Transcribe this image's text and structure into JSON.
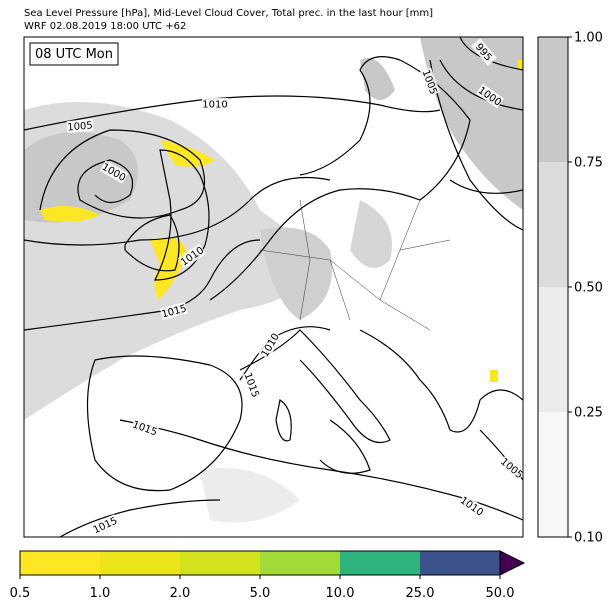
{
  "header": {
    "title": "Sea Level Pressure [hPa], Mid-Level Cloud Cover, Total prec. in the last hour [mm]",
    "subtitle": "WRF 02.08.2019 18:00 UTC +62"
  },
  "time_label": "08 UTC Mon",
  "cloud_colorbar": {
    "ticks": [
      "1.00",
      "0.75",
      "0.50",
      "0.25",
      "0.10"
    ]
  },
  "precip_colorbar": {
    "ticks": [
      "0.5",
      "1.0",
      "2.0",
      "5.0",
      "10.0",
      "25.0",
      "50.0"
    ]
  },
  "isobar_labels": [
    "995",
    "1000",
    "1005",
    "1010",
    "1005",
    "1000",
    "1010",
    "1015",
    "1010",
    "1015",
    "1015",
    "1015",
    "1005",
    "1010"
  ]
}
